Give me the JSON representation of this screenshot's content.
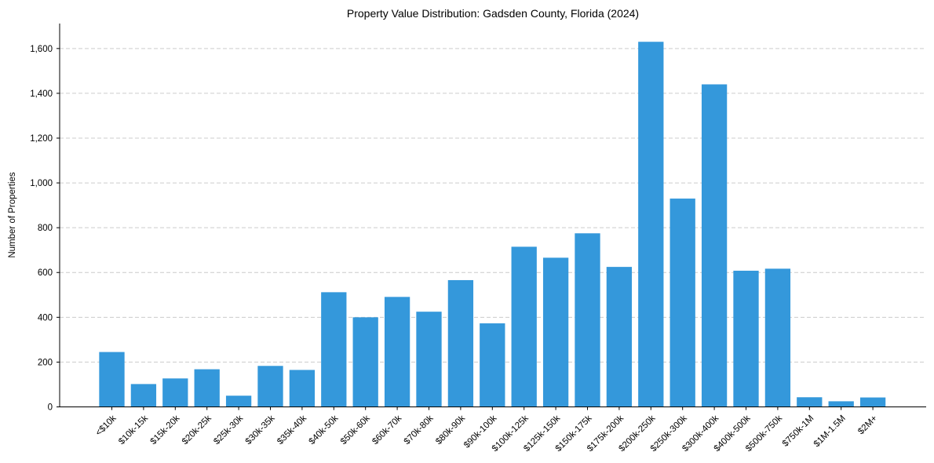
{
  "chart_data": {
    "type": "bar",
    "title": "Property Value Distribution: Gadsden County, Florida (2024)",
    "xlabel": "",
    "ylabel": "Number of Properties",
    "categories": [
      "<$10k",
      "$10k-15k",
      "$15k-20k",
      "$20k-25k",
      "$25k-30k",
      "$30k-35k",
      "$35k-40k",
      "$40k-50k",
      "$50k-60k",
      "$60k-70k",
      "$70k-80k",
      "$80k-90k",
      "$90k-100k",
      "$100k-125k",
      "$125k-150k",
      "$150k-175k",
      "$175k-200k",
      "$200k-250k",
      "$250k-300k",
      "$300k-400k",
      "$400k-500k",
      "$500k-750k",
      "$750k-1M",
      "$1M-1.5M",
      "$2M+"
    ],
    "values": [
      245,
      102,
      127,
      168,
      50,
      183,
      165,
      512,
      400,
      491,
      425,
      566,
      373,
      715,
      666,
      775,
      625,
      1630,
      930,
      1440,
      608,
      617,
      43,
      25,
      42
    ],
    "yticks": [
      0,
      200,
      400,
      600,
      800,
      1000,
      1200,
      1400,
      1600
    ],
    "ytick_labels": [
      "0",
      "200",
      "400",
      "600",
      "800",
      "1,000",
      "1,200",
      "1,400",
      "1,600"
    ],
    "ylim": [
      0,
      1711.5
    ],
    "grid": "y-dashed",
    "bar_color": "#3498db"
  }
}
